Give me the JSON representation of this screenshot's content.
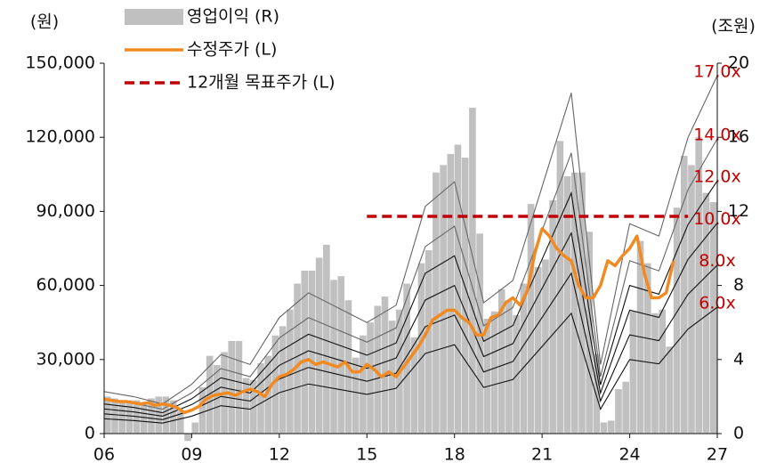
{
  "chart_data": {
    "type": "combo",
    "y_label": "(원)",
    "y2_label": "(조원)",
    "legend": "top-left",
    "xlim": [
      2006,
      2027
    ],
    "xticks": [
      {
        "value": 2006,
        "label": "06"
      },
      {
        "value": 2009,
        "label": "09"
      },
      {
        "value": 2012,
        "label": "12"
      },
      {
        "value": 2015,
        "label": "15"
      },
      {
        "value": 2018,
        "label": "18"
      },
      {
        "value": 2021,
        "label": "21"
      },
      {
        "value": 2024,
        "label": "24"
      },
      {
        "value": 2027,
        "label": "27"
      }
    ],
    "ylim": [
      0,
      150000
    ],
    "yticks": [
      0,
      {
        "value": 30000,
        "label": "30,000"
      },
      {
        "value": 60000,
        "label": "60,000"
      },
      {
        "value": 90000,
        "label": "90,000"
      },
      {
        "value": 120000,
        "label": "120,000"
      },
      {
        "value": 150000,
        "label": "150,000"
      }
    ],
    "y2lim": [
      0,
      20
    ],
    "y2ticks": [
      0,
      4,
      8,
      12,
      16,
      20
    ],
    "series": [
      {
        "name": "영업이익 (R)",
        "type": "bar",
        "axis": "y2",
        "color": "#c0c0c0",
        "x": [
          2006,
          2006.25,
          2006.5,
          2006.75,
          2007,
          2007.25,
          2007.5,
          2007.75,
          2008,
          2008.25,
          2008.5,
          2008.75,
          2009,
          2009.25,
          2009.5,
          2009.75,
          2010,
          2010.25,
          2010.5,
          2010.75,
          2011,
          2011.25,
          2011.5,
          2011.75,
          2012,
          2012.25,
          2012.5,
          2012.75,
          2013,
          2013.25,
          2013.5,
          2013.75,
          2014,
          2014.25,
          2014.5,
          2014.75,
          2015,
          2015.25,
          2015.5,
          2015.75,
          2016,
          2016.25,
          2016.5,
          2016.75,
          2017,
          2017.25,
          2017.5,
          2017.75,
          2018,
          2018.25,
          2018.5,
          2018.75,
          2019,
          2019.25,
          2019.5,
          2019.75,
          2020,
          2020.25,
          2020.5,
          2020.75,
          2021,
          2021.25,
          2021.5,
          2021.75,
          2022,
          2022.25,
          2022.5,
          2022.75,
          2023,
          2023.25,
          2023.5,
          2023.75,
          2024,
          2024.25,
          2024.5,
          2024.75,
          2025,
          2025.25,
          2025.5,
          2025.75,
          2026,
          2026.25,
          2026.5,
          2026.75
        ],
        "values": [
          2.0,
          1.9,
          1.8,
          1.8,
          1.8,
          1.7,
          1.9,
          2.0,
          2.0,
          1.8,
          1.2,
          -0.4,
          0.6,
          2.5,
          4.2,
          3.7,
          4.4,
          5.0,
          5.0,
          3.0,
          2.9,
          3.8,
          4.2,
          5.3,
          5.8,
          6.7,
          8.1,
          8.8,
          8.8,
          9.5,
          10.2,
          8.3,
          8.5,
          7.2,
          4.1,
          5.3,
          6.0,
          6.9,
          7.4,
          6.1,
          6.7,
          8.1,
          5.2,
          9.2,
          9.9,
          14.1,
          14.5,
          15.1,
          15.6,
          14.9,
          17.6,
          10.8,
          6.2,
          6.6,
          7.8,
          7.2,
          6.4,
          8.1,
          12.4,
          9.0,
          9.4,
          12.6,
          15.8,
          13.9,
          14.1,
          14.1,
          10.9,
          4.3,
          0.6,
          0.7,
          2.4,
          2.8,
          6.6,
          10.4,
          9.2,
          6.5,
          6.7,
          4.7,
          12.2,
          15.0,
          14.5,
          16.0,
          13.0,
          12.5
        ]
      },
      {
        "name": "수정주가 (L)",
        "type": "line",
        "color": "#f28a22",
        "x": [
          2006,
          2006.25,
          2006.5,
          2006.75,
          2007,
          2007.25,
          2007.5,
          2007.75,
          2008,
          2008.25,
          2008.5,
          2008.75,
          2009,
          2009.25,
          2009.5,
          2009.75,
          2010,
          2010.25,
          2010.5,
          2010.75,
          2011,
          2011.25,
          2011.5,
          2011.75,
          2012,
          2012.25,
          2012.5,
          2012.75,
          2013,
          2013.25,
          2013.5,
          2013.75,
          2014,
          2014.25,
          2014.5,
          2014.75,
          2015,
          2015.25,
          2015.5,
          2015.75,
          2016,
          2016.25,
          2016.5,
          2016.75,
          2017,
          2017.25,
          2017.5,
          2017.75,
          2018,
          2018.25,
          2018.5,
          2018.75,
          2019,
          2019.25,
          2019.5,
          2019.75,
          2020,
          2020.25,
          2020.5,
          2020.75,
          2021,
          2021.25,
          2021.5,
          2021.75,
          2022,
          2022.25,
          2022.5,
          2022.75,
          2023,
          2023.25,
          2023.5,
          2023.75,
          2024,
          2024.25,
          2024.5,
          2024.75,
          2025,
          2025.25,
          2025.5
        ],
        "values": [
          14000,
          13500,
          13000,
          13000,
          12500,
          12000,
          12500,
          11500,
          12000,
          11500,
          10500,
          8500,
          9500,
          11000,
          14000,
          15500,
          16000,
          16500,
          15500,
          17000,
          18000,
          17000,
          15000,
          20000,
          23000,
          24000,
          26000,
          29000,
          30000,
          28000,
          29000,
          28000,
          27000,
          29000,
          25000,
          25000,
          28000,
          26000,
          23000,
          25000,
          23000,
          27000,
          31000,
          35000,
          40000,
          46000,
          48000,
          50000,
          50000,
          47000,
          45000,
          40000,
          40000,
          47000,
          48000,
          53000,
          55000,
          52000,
          58000,
          73000,
          83000,
          80000,
          75000,
          72000,
          70000,
          60000,
          55000,
          55000,
          60000,
          70000,
          68000,
          72000,
          75000,
          80000,
          65000,
          55000,
          55000,
          57000,
          70000
        ]
      },
      {
        "name": "12개월 목표주가 (L)",
        "type": "dashed",
        "color": "#c00000",
        "x": [
          2015,
          2026
        ],
        "values": [
          88000,
          88000
        ]
      }
    ],
    "band_x": [
      2006,
      2007,
      2008,
      2009,
      2010,
      2011,
      2012,
      2013,
      2014,
      2015,
      2016,
      2017,
      2018,
      2019,
      2020,
      2021,
      2022,
      2023,
      2024,
      2025,
      2026,
      2027
    ],
    "band_label_color": "#c00000",
    "bands": [
      {
        "label": "17.0x",
        "color": "#666666",
        "values": [
          17000,
          15000,
          12000,
          20000,
          32000,
          28000,
          47000,
          57000,
          51000,
          45000,
          52000,
          92000,
          102000,
          53000,
          62000,
          100000,
          138000,
          28000,
          85000,
          80000,
          120000,
          145000
        ]
      },
      {
        "label": "14.0x",
        "color": "#666666",
        "values": [
          14000,
          12350,
          9900,
          16500,
          26350,
          23050,
          38700,
          46950,
          42000,
          37050,
          42800,
          75750,
          84000,
          43650,
          51050,
          82350,
          113650,
          23050,
          70000,
          65900,
          98800,
          119400
        ]
      },
      {
        "label": "12.0x",
        "color": "#111111",
        "values": [
          12000,
          10600,
          8450,
          14100,
          22600,
          19750,
          33200,
          40250,
          36000,
          31750,
          36700,
          64950,
          72000,
          37400,
          43750,
          70600,
          97400,
          19750,
          60000,
          56450,
          84700,
          102350
        ]
      },
      {
        "label": "10.0x",
        "color": "#111111",
        "values": [
          10000,
          8800,
          7050,
          11750,
          18800,
          16450,
          27650,
          33550,
          30000,
          26450,
          30600,
          54100,
          60000,
          31200,
          36450,
          58800,
          81200,
          16450,
          50000,
          47050,
          70600,
          85300
        ]
      },
      {
        "label": "8.0x",
        "color": "#111111",
        "values": [
          8000,
          7050,
          5650,
          9400,
          15050,
          13200,
          22100,
          26800,
          24000,
          21200,
          24450,
          43300,
          48000,
          24950,
          29200,
          47050,
          64950,
          13200,
          40000,
          37650,
          56450,
          68250
        ]
      },
      {
        "label": "6.0x",
        "color": "#111111",
        "values": [
          6000,
          5300,
          4250,
          7050,
          11300,
          9900,
          16600,
          20100,
          18000,
          15900,
          18350,
          32450,
          36000,
          18700,
          21900,
          35300,
          48700,
          9900,
          30000,
          28250,
          42350,
          51200
        ]
      }
    ]
  }
}
